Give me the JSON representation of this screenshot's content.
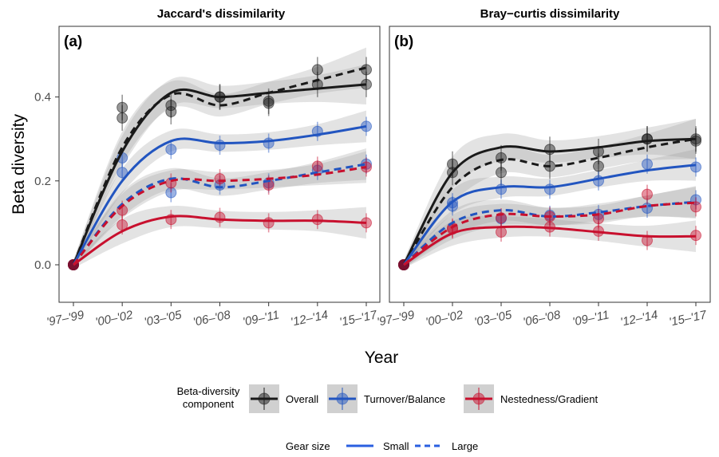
{
  "chart_data": [
    {
      "type": "line",
      "panel_label": "(a)",
      "title": "Jaccard's dissimilarity",
      "categories": [
        "'97–'99",
        "'00–'02",
        "'03–'05",
        "'06–'08",
        "'09–'11",
        "'12–'14",
        "'15–'17"
      ],
      "ylim": [
        -0.1,
        0.56
      ],
      "yticks": [
        0.0,
        0.2,
        0.4
      ],
      "ytick_labels": [
        "0.0",
        "0.2",
        "0.4"
      ],
      "series": [
        {
          "component": "Overall",
          "gear": "Small",
          "color": "#1a1a1a",
          "dash": false,
          "points": [
            0.0,
            0.35,
            0.365,
            0.4,
            0.385,
            0.43,
            0.43
          ],
          "smooth": [
            0.0,
            0.27,
            0.41,
            0.4,
            0.41,
            0.42,
            0.43
          ]
        },
        {
          "component": "Overall",
          "gear": "Large",
          "color": "#1a1a1a",
          "dash": true,
          "points": [
            0.0,
            0.375,
            0.38,
            0.4,
            0.39,
            0.465,
            0.465
          ],
          "smooth": [
            0.0,
            0.28,
            0.405,
            0.38,
            0.41,
            0.44,
            0.47
          ]
        },
        {
          "component": "Turnover/Balance",
          "gear": "Small",
          "color": "#2255c0",
          "dash": false,
          "points": [
            0.0,
            0.22,
            0.275,
            0.285,
            0.29,
            0.318,
            0.33
          ],
          "smooth": [
            0.0,
            0.2,
            0.295,
            0.29,
            0.295,
            0.31,
            0.33
          ]
        },
        {
          "component": "Turnover/Balance",
          "gear": "Large",
          "color": "#2255c0",
          "dash": true,
          "points": [
            0.0,
            0.255,
            0.172,
            0.19,
            0.195,
            0.225,
            0.24
          ],
          "smooth": [
            0.0,
            0.145,
            0.205,
            0.185,
            0.2,
            0.22,
            0.24
          ]
        },
        {
          "component": "Nestedness/Gradient",
          "gear": "Small",
          "color": "#c8102e",
          "dash": false,
          "points": [
            0.0,
            0.095,
            0.108,
            0.113,
            0.1,
            0.108,
            0.1
          ],
          "smooth": [
            0.0,
            0.08,
            0.115,
            0.108,
            0.105,
            0.105,
            0.1
          ]
        },
        {
          "component": "Nestedness/Gradient",
          "gear": "Large",
          "color": "#c8102e",
          "dash": true,
          "points": [
            0.0,
            0.13,
            0.195,
            0.205,
            0.19,
            0.235,
            0.233
          ],
          "smooth": [
            0.0,
            0.14,
            0.2,
            0.2,
            0.205,
            0.215,
            0.233
          ]
        }
      ]
    },
    {
      "type": "line",
      "panel_label": "(b)",
      "title": "Bray−curtis dissimilarity",
      "categories": [
        "'97–'99",
        "'00–'02",
        "'03–'05",
        "'06–'08",
        "'09–'11",
        "'12–'14",
        "'15–'17"
      ],
      "ylim": [
        -0.1,
        0.56
      ],
      "yticks": [
        0.0,
        0.2,
        0.4
      ],
      "ytick_labels": [
        "0.0",
        "0.2",
        "0.4"
      ],
      "series": [
        {
          "component": "Overall",
          "gear": "Small",
          "color": "#1a1a1a",
          "dash": false,
          "points": [
            0.0,
            0.24,
            0.255,
            0.275,
            0.27,
            0.3,
            0.3
          ],
          "smooth": [
            0.0,
            0.22,
            0.28,
            0.27,
            0.28,
            0.295,
            0.3
          ]
        },
        {
          "component": "Overall",
          "gear": "Large",
          "color": "#1a1a1a",
          "dash": true,
          "points": [
            0.0,
            0.22,
            0.22,
            0.235,
            0.235,
            0.3,
            0.295
          ],
          "smooth": [
            0.0,
            0.185,
            0.25,
            0.235,
            0.255,
            0.28,
            0.3
          ]
        },
        {
          "component": "Turnover/Balance",
          "gear": "Small",
          "color": "#2255c0",
          "dash": false,
          "points": [
            0.0,
            0.14,
            0.18,
            0.18,
            0.2,
            0.24,
            0.233
          ],
          "smooth": [
            0.0,
            0.15,
            0.185,
            0.185,
            0.205,
            0.225,
            0.238
          ]
        },
        {
          "component": "Turnover/Balance",
          "gear": "Large",
          "color": "#2255c0",
          "dash": true,
          "points": [
            0.0,
            0.148,
            0.11,
            0.118,
            0.12,
            0.135,
            0.155
          ],
          "smooth": [
            0.0,
            0.1,
            0.13,
            0.115,
            0.125,
            0.14,
            0.15
          ]
        },
        {
          "component": "Nestedness/Gradient",
          "gear": "Small",
          "color": "#c8102e",
          "dash": false,
          "points": [
            0.0,
            0.088,
            0.078,
            0.09,
            0.08,
            0.058,
            0.07
          ],
          "smooth": [
            0.0,
            0.075,
            0.09,
            0.088,
            0.078,
            0.068,
            0.068
          ]
        },
        {
          "component": "Nestedness/Gradient",
          "gear": "Large",
          "color": "#c8102e",
          "dash": true,
          "points": [
            0.0,
            0.085,
            0.112,
            0.115,
            0.11,
            0.168,
            0.138
          ],
          "smooth": [
            0.0,
            0.09,
            0.12,
            0.115,
            0.12,
            0.14,
            0.148
          ]
        }
      ]
    }
  ],
  "y_axis_title": "Beta diversity",
  "x_axis_title": "Year",
  "legend": {
    "component_title_line1": "Beta-diversity",
    "component_title_line2": "component",
    "components": [
      {
        "label": "Overall",
        "color": "#1a1a1a"
      },
      {
        "label": "Turnover/Balance",
        "color": "#2255c0"
      },
      {
        "label": "Nestedness/Gradient",
        "color": "#c8102e"
      }
    ],
    "gear_title": "Gear size",
    "gear_items": [
      {
        "label": "Small",
        "dash": false,
        "color": "#2a5fe0"
      },
      {
        "label": "Large",
        "dash": true,
        "color": "#2a5fe0"
      }
    ]
  }
}
